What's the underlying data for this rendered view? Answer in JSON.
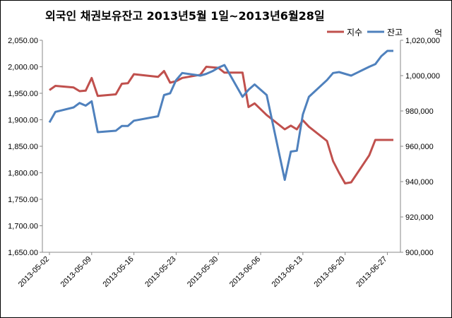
{
  "chart_data": {
    "type": "line",
    "title": "외국인 채권보유잔고  2013년5월 1일~2013년6월28일",
    "right_unit": "억",
    "legend_position": "top-right",
    "grid": false,
    "y_left": {
      "range": [
        1650,
        2050
      ],
      "ticks": [
        "1,650.00",
        "1,700.00",
        "1,750.00",
        "1,800.00",
        "1,850.00",
        "1,900.00",
        "1,950.00",
        "2,000.00",
        "2,050.00"
      ],
      "tick_values": [
        1650,
        1700,
        1750,
        1800,
        1850,
        1900,
        1950,
        2000,
        2050
      ]
    },
    "y_right": {
      "range": [
        900000,
        1020000
      ],
      "ticks": [
        "900,000",
        "920,000",
        "940,000",
        "960,000",
        "980,000",
        "1,000,000",
        "1,020,000"
      ],
      "tick_values": [
        900000,
        920000,
        940000,
        960000,
        980000,
        1000000,
        1020000
      ]
    },
    "x_tick_labels": [
      "2013-05-02",
      "2013-05-09",
      "2013-05-16",
      "2013-05-23",
      "2013-05-30",
      "2013-06-06",
      "2013-06-13",
      "2013-06-20",
      "2013-06-27"
    ],
    "x": [
      "2013-05-02",
      "2013-05-03",
      "2013-05-06",
      "2013-05-07",
      "2013-05-08",
      "2013-05-09",
      "2013-05-10",
      "2013-05-13",
      "2013-05-14",
      "2013-05-15",
      "2013-05-16",
      "2013-05-20",
      "2013-05-21",
      "2013-05-22",
      "2013-05-23",
      "2013-05-24",
      "2013-05-27",
      "2013-05-28",
      "2013-05-29",
      "2013-05-30",
      "2013-05-31",
      "2013-06-03",
      "2013-06-04",
      "2013-06-05",
      "2013-06-07",
      "2013-06-10",
      "2013-06-11",
      "2013-06-12",
      "2013-06-13",
      "2013-06-14",
      "2013-06-17",
      "2013-06-18",
      "2013-06-19",
      "2013-06-20",
      "2013-06-21",
      "2013-06-24",
      "2013-06-25",
      "2013-06-26",
      "2013-06-27",
      "2013-06-28"
    ],
    "series": [
      {
        "name": "지수",
        "axis": "left",
        "color": "#c0504d",
        "values": [
          1956,
          1964,
          1961,
          1954,
          1955,
          1979,
          1945,
          1948,
          1968,
          1969,
          1986,
          1981,
          1992,
          1970,
          1973,
          1979,
          1985,
          2000,
          1999,
          1998,
          1989,
          1989,
          1924,
          1931,
          1909,
          1882,
          1889,
          1882,
          1899,
          1887,
          1860,
          1822,
          1800,
          1780,
          1782,
          1833,
          1862,
          1862,
          1862,
          1862
        ]
      },
      {
        "name": "잔고",
        "axis": "right",
        "color": "#4f81bd",
        "values": [
          973500,
          979500,
          982000,
          984500,
          983000,
          985500,
          968000,
          968800,
          971500,
          971500,
          974500,
          977000,
          989000,
          990000,
          997500,
          1001500,
          1000000,
          1001000,
          1002500,
          1004500,
          1006000,
          988000,
          992000,
          995000,
          989000,
          941000,
          957000,
          957500,
          978000,
          988000,
          997500,
          1001500,
          1002000,
          1001000,
          1000000,
          1005000,
          1006500,
          1011000,
          1014000,
          1014000
        ]
      }
    ]
  }
}
